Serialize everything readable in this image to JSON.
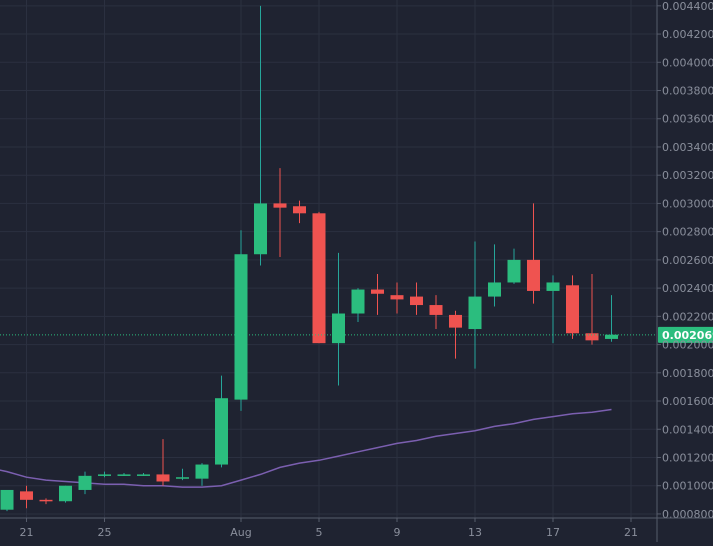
{
  "chart_data": {
    "type": "candlestick",
    "colors": {
      "background": "#1f2331",
      "grid": "#2b3040",
      "axis_line": "#565c6b",
      "axis_text": "#8a8f9c",
      "up": "#26a69a",
      "up_body": "#2bbd7e",
      "down": "#ef5350",
      "ma_line": "#7b5fb0",
      "current_price_bg": "#2bbd7e",
      "current_price_text": "#ffffff"
    },
    "y_axis": {
      "ylim": [
        0.00075,
        0.00442
      ],
      "ticks": [
        "0.004400",
        "0.004200",
        "0.004000",
        "0.003800",
        "0.003600",
        "0.003400",
        "0.003200",
        "0.003000",
        "0.002800",
        "0.002600",
        "0.002400",
        "0.002200",
        "0.002000",
        "0.001800",
        "0.001600",
        "0.001400",
        "0.001200",
        "0.001000",
        "0.000800"
      ],
      "position": "right"
    },
    "x_axis": {
      "ticks": [
        {
          "label": "21",
          "index": 1
        },
        {
          "label": "25",
          "index": 5
        },
        {
          "label": "Aug",
          "index": 12
        },
        {
          "label": "5",
          "index": 16
        },
        {
          "label": "9",
          "index": 20
        },
        {
          "label": "13",
          "index": 24
        },
        {
          "label": "17",
          "index": 28
        },
        {
          "label": "21",
          "index": 32
        }
      ]
    },
    "current_price": "0.002069",
    "candles": [
      {
        "o": 0.00083,
        "h": 0.00097,
        "l": 0.00082,
        "c": 0.00097
      },
      {
        "o": 0.00096,
        "h": 0.001,
        "l": 0.00084,
        "c": 0.0009
      },
      {
        "o": 0.0009,
        "h": 0.00091,
        "l": 0.00087,
        "c": 0.00089
      },
      {
        "o": 0.00089,
        "h": 0.001,
        "l": 0.00088,
        "c": 0.001
      },
      {
        "o": 0.00097,
        "h": 0.0011,
        "l": 0.00094,
        "c": 0.00107
      },
      {
        "o": 0.00107,
        "h": 0.0011,
        "l": 0.00106,
        "c": 0.00108
      },
      {
        "o": 0.00108,
        "h": 0.00109,
        "l": 0.00107,
        "c": 0.00108
      },
      {
        "o": 0.00108,
        "h": 0.00109,
        "l": 0.00107,
        "c": 0.00108
      },
      {
        "o": 0.00108,
        "h": 0.00133,
        "l": 0.001,
        "c": 0.00103
      },
      {
        "o": 0.00105,
        "h": 0.00112,
        "l": 0.00104,
        "c": 0.00106
      },
      {
        "o": 0.00105,
        "h": 0.00116,
        "l": 0.001,
        "c": 0.00115
      },
      {
        "o": 0.00115,
        "h": 0.00178,
        "l": 0.00113,
        "c": 0.00162
      },
      {
        "o": 0.00161,
        "h": 0.00281,
        "l": 0.00153,
        "c": 0.00264
      },
      {
        "o": 0.00264,
        "h": 0.0044,
        "l": 0.00256,
        "c": 0.003
      },
      {
        "o": 0.003,
        "h": 0.00325,
        "l": 0.00262,
        "c": 0.00297
      },
      {
        "o": 0.00298,
        "h": 0.00302,
        "l": 0.00286,
        "c": 0.00293
      },
      {
        "o": 0.00293,
        "h": 0.00294,
        "l": 0.00201,
        "c": 0.00201
      },
      {
        "o": 0.00201,
        "h": 0.00265,
        "l": 0.00171,
        "c": 0.00222
      },
      {
        "o": 0.00222,
        "h": 0.0024,
        "l": 0.00216,
        "c": 0.00239
      },
      {
        "o": 0.00239,
        "h": 0.0025,
        "l": 0.00221,
        "c": 0.00236
      },
      {
        "o": 0.00235,
        "h": 0.00244,
        "l": 0.00222,
        "c": 0.00232
      },
      {
        "o": 0.00234,
        "h": 0.00244,
        "l": 0.00221,
        "c": 0.00228
      },
      {
        "o": 0.00228,
        "h": 0.00235,
        "l": 0.00211,
        "c": 0.00221
      },
      {
        "o": 0.00221,
        "h": 0.00224,
        "l": 0.0019,
        "c": 0.00212
      },
      {
        "o": 0.00211,
        "h": 0.00273,
        "l": 0.00183,
        "c": 0.00234
      },
      {
        "o": 0.00234,
        "h": 0.00271,
        "l": 0.00227,
        "c": 0.00244
      },
      {
        "o": 0.00244,
        "h": 0.00268,
        "l": 0.00243,
        "c": 0.0026
      },
      {
        "o": 0.0026,
        "h": 0.003,
        "l": 0.00229,
        "c": 0.00238
      },
      {
        "o": 0.00238,
        "h": 0.00249,
        "l": 0.00201,
        "c": 0.00244
      },
      {
        "o": 0.00242,
        "h": 0.00249,
        "l": 0.00204,
        "c": 0.00208
      },
      {
        "o": 0.00208,
        "h": 0.0025,
        "l": 0.002,
        "c": 0.00203
      },
      {
        "o": 0.00204,
        "h": 0.00235,
        "l": 0.00202,
        "c": 0.00207
      }
    ],
    "ma_line": {
      "x": [
        -1,
        0,
        1,
        2,
        3,
        4,
        5,
        6,
        7,
        8,
        9,
        10,
        11,
        12,
        13,
        14,
        15,
        16,
        17,
        18,
        19,
        20,
        21,
        22,
        23,
        24,
        25,
        26,
        27,
        28,
        29,
        30,
        31
      ],
      "y": [
        0.00113,
        0.0011,
        0.00106,
        0.00104,
        0.00103,
        0.00102,
        0.00101,
        0.00101,
        0.001,
        0.001,
        0.00099,
        0.00099,
        0.001,
        0.00104,
        0.00108,
        0.00113,
        0.00116,
        0.00118,
        0.00121,
        0.00124,
        0.00127,
        0.0013,
        0.00132,
        0.00135,
        0.00137,
        0.00139,
        0.00142,
        0.00144,
        0.00147,
        0.00149,
        0.00151,
        0.00152,
        0.00154
      ]
    }
  }
}
